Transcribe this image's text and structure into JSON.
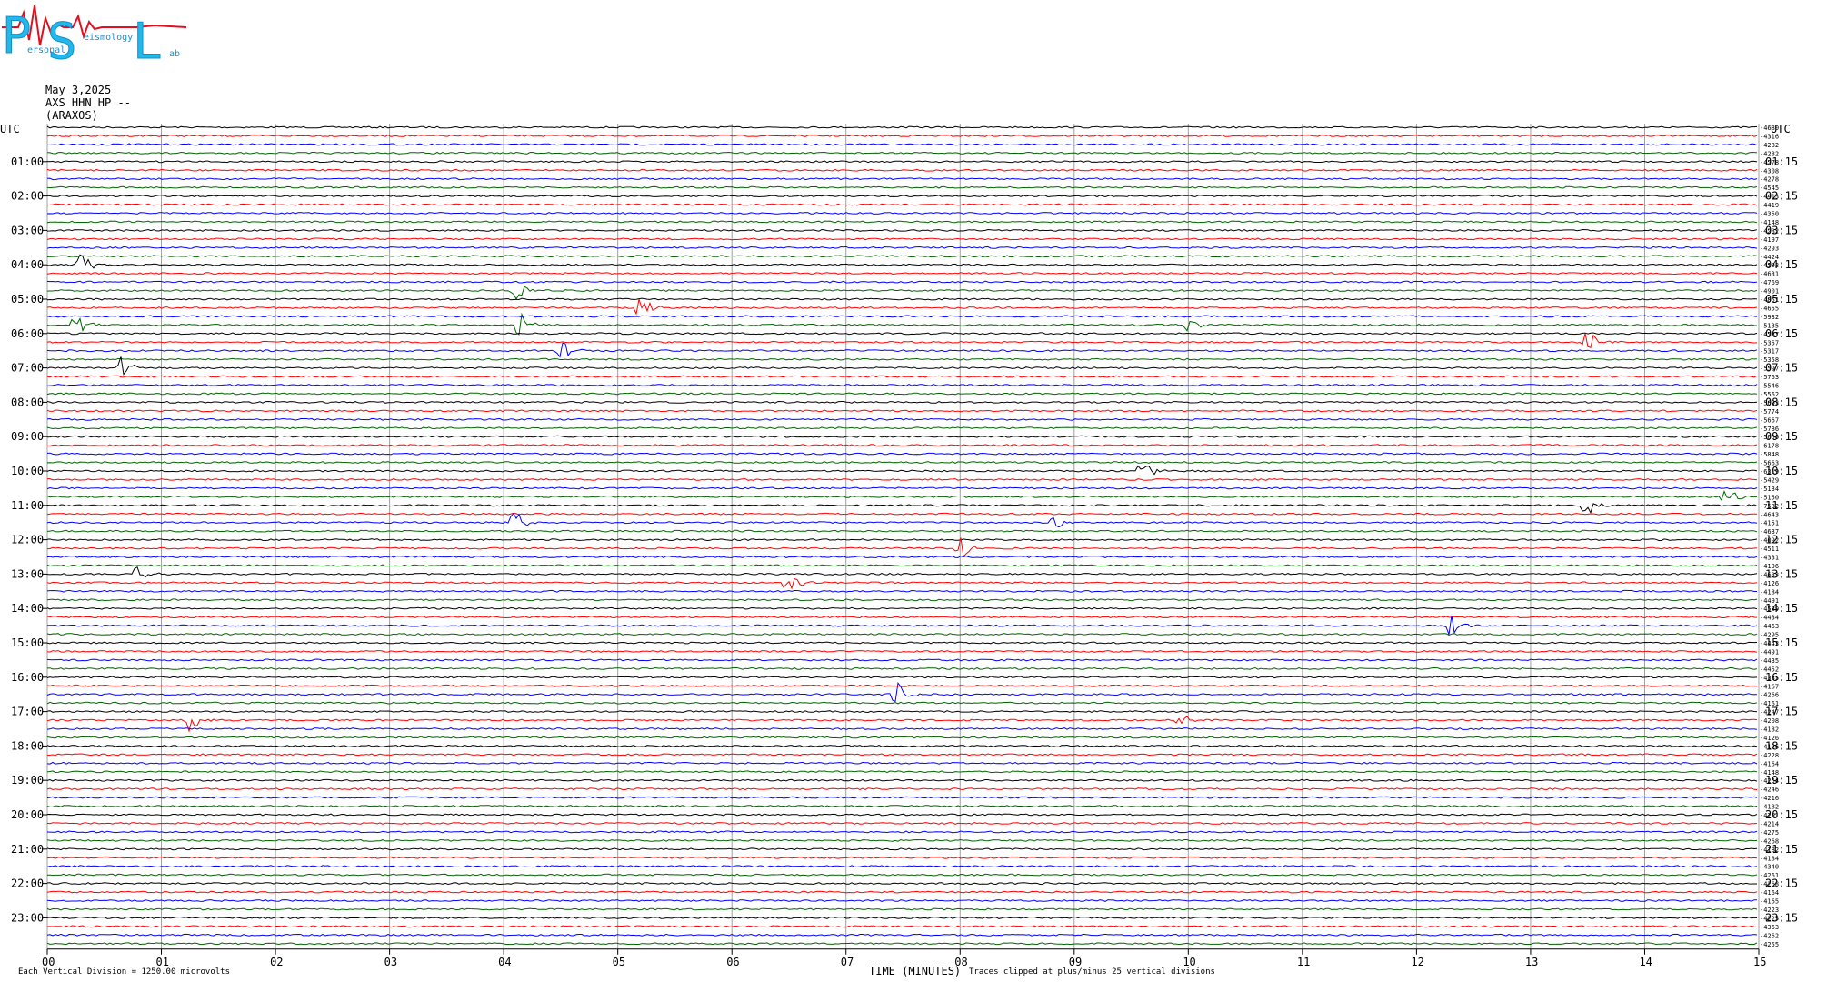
{
  "logo": {
    "letters": [
      "P",
      "S",
      "L"
    ],
    "words": [
      "ersonal",
      "eismology",
      "ab"
    ]
  },
  "header": {
    "date": "May 3,2025",
    "station": "AXS HHN HP --",
    "site": "(ARAXOS)"
  },
  "footer": {
    "scale_note": "Each Vertical Division = 1250.00 microvolts",
    "axis_title": "TIME (MINUTES)",
    "clip_note": "Traces clipped at plus/minus 25 vertical divisions"
  },
  "colors": [
    "#000000",
    "#ff0000",
    "#0000ff",
    "#006400"
  ],
  "chart_data": {
    "type": "line",
    "chart_kind": "helicorder",
    "x_unit": "minutes",
    "xlim": [
      0,
      15
    ],
    "x_ticks": [
      "00",
      "01",
      "02",
      "03",
      "04",
      "05",
      "06",
      "07",
      "08",
      "09",
      "10",
      "11",
      "12",
      "13",
      "14",
      "15"
    ],
    "grid": true,
    "left_axis_title": "UTC",
    "right_axis_title": "UTC",
    "left_hour_labels": [
      "01:00",
      "02:00",
      "03:00",
      "04:00",
      "05:00",
      "06:00",
      "07:00",
      "08:00",
      "09:00",
      "10:00",
      "11:00",
      "12:00",
      "13:00",
      "14:00",
      "15:00",
      "16:00",
      "17:00",
      "18:00",
      "19:00",
      "20:00",
      "21:00",
      "22:00",
      "23:00"
    ],
    "right_hour_labels": [
      "01:15",
      "02:15",
      "03:15",
      "04:15",
      "05:15",
      "06:15",
      "07:15",
      "08:15",
      "09:15",
      "10:15",
      "11:15",
      "12:15",
      "13:15",
      "14:15",
      "15:15",
      "16:15",
      "17:15",
      "18:15",
      "19:15",
      "20:15",
      "21:15",
      "22:15",
      "23:15"
    ],
    "trace_offsets": [
      "-4680",
      "-4316",
      "-4282",
      "-4282",
      "-4278",
      "-4308",
      "-4278",
      "-4545",
      "-4413",
      "-4419",
      "-4350",
      "-4148",
      "-4282",
      "-4197",
      "-4293",
      "-4424",
      "-4193",
      "-4631",
      "-4769",
      "-4901",
      "-4851",
      "-4655",
      "-5932",
      "-5135",
      "-4787",
      "-5357",
      "-5317",
      "-5358",
      "-5397",
      "-5763",
      "-5546",
      "-5562",
      "-5693",
      "-5774",
      "-5667",
      "-5786",
      "-5650",
      "-6178",
      "-5848",
      "-5663",
      "-6319",
      "-5429",
      "-5134",
      "-5150",
      "-7532",
      "-4643",
      "-4151",
      "-4637",
      "-4092",
      "-4511",
      "-4331",
      "-4196",
      "-4633",
      "-4126",
      "-4184",
      "-4491",
      "-4589",
      "-4434",
      "-4463",
      "-4295",
      "-4443",
      "-4491",
      "-4435",
      "-4452",
      "-4335",
      "-4167",
      "-4266",
      "-4161",
      "-4247",
      "-4208",
      "-4182",
      "-4126",
      "-4126",
      "-4228",
      "-4164",
      "-4148",
      "-4254",
      "-4246",
      "-4216",
      "-4182",
      "-4261",
      "-4214",
      "-4275",
      "-4268",
      "-4182",
      "-4184",
      "-4340",
      "-4261",
      "-4268",
      "-4164",
      "-4165",
      "-4223",
      "-4225",
      "-4363",
      "-4262",
      "-4255"
    ],
    "events": [
      {
        "trace": 16,
        "minute": 0.3,
        "kind": "burst"
      },
      {
        "trace": 19,
        "minute": 4.1,
        "kind": "burst"
      },
      {
        "trace": 21,
        "minute": 5.2,
        "kind": "burst"
      },
      {
        "trace": 23,
        "minute": 0.25,
        "kind": "burst"
      },
      {
        "trace": 23,
        "minute": 4.15,
        "kind": "burst"
      },
      {
        "trace": 23,
        "minute": 10.0,
        "kind": "burst"
      },
      {
        "trace": 26,
        "minute": 4.5,
        "kind": "burst"
      },
      {
        "trace": 28,
        "minute": 0.65,
        "kind": "burst"
      },
      {
        "trace": 25,
        "minute": 13.5,
        "kind": "burst"
      },
      {
        "trace": 40,
        "minute": 9.6,
        "kind": "burst"
      },
      {
        "trace": 43,
        "minute": 14.7,
        "kind": "burst"
      },
      {
        "trace": 44,
        "minute": 13.5,
        "kind": "burst"
      },
      {
        "trace": 46,
        "minute": 4.1,
        "kind": "burst"
      },
      {
        "trace": 46,
        "minute": 8.8,
        "kind": "burst"
      },
      {
        "trace": 49,
        "minute": 8.0,
        "kind": "burst"
      },
      {
        "trace": 52,
        "minute": 0.8,
        "kind": "burst"
      },
      {
        "trace": 53,
        "minute": 6.5,
        "kind": "burst"
      },
      {
        "trace": 58,
        "minute": 12.3,
        "kind": "burst"
      },
      {
        "trace": 66,
        "minute": 7.45,
        "kind": "burst"
      },
      {
        "trace": 69,
        "minute": 1.25,
        "kind": "burst"
      },
      {
        "trace": 69,
        "minute": 9.9,
        "kind": "burst"
      }
    ]
  }
}
